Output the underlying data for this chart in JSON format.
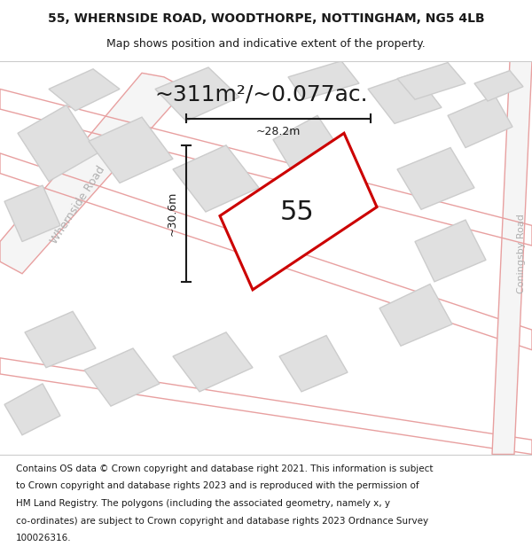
{
  "title_line1": "55, WHERNSIDE ROAD, WOODTHORPE, NOTTINGHAM, NG5 4LB",
  "title_line2": "Map shows position and indicative extent of the property.",
  "area_text": "~311m²/~0.077ac.",
  "width_label": "~28.2m",
  "height_label": "~30.6m",
  "property_number": "55",
  "footer_lines": [
    "Contains OS data © Crown copyright and database right 2021. This information is subject",
    "to Crown copyright and database rights 2023 and is reproduced with the permission of",
    "HM Land Registry. The polygons (including the associated geometry, namely x, y",
    "co-ordinates) are subject to Crown copyright and database rights 2023 Ordnance Survey",
    "100026316."
  ],
  "map_bg_color": "#f0f0f0",
  "building_facecolor": "#e0e0e0",
  "building_edgecolor": "#cccccc",
  "road_edgecolor": "#e8a0a0",
  "property_color": "#cc0000",
  "dimension_color": "#1a1a1a",
  "road_label_color": "#b0b0b0",
  "title_fontsize": 10,
  "subtitle_fontsize": 9,
  "area_fontsize": 18,
  "number_fontsize": 22,
  "dim_fontsize": 9,
  "footer_fontsize": 7.5
}
